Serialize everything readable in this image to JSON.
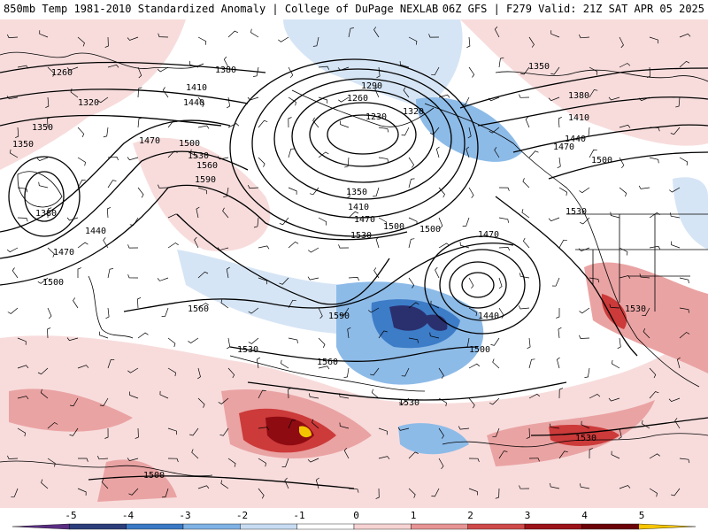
{
  "header": {
    "left_title": "850mb Temp 1981-2010 Standardized Anomaly | College of DuPage NEXLAB",
    "right_title": "06Z GFS | F279 Valid: 21Z SAT APR 05 2025"
  },
  "contour_labels": [
    "1260",
    "1320",
    "1350",
    "1380",
    "1410",
    "1440",
    "1470",
    "1500",
    "1530",
    "1560",
    "1590",
    "1350",
    "1290",
    "1260",
    "1230",
    "1320",
    "1350",
    "1410",
    "1470",
    "1500",
    "1530",
    "1380",
    "1440",
    "1470",
    "1500",
    "1530",
    "1560",
    "1590",
    "1560",
    "1530",
    "1470",
    "1440",
    "1500",
    "1530",
    "1350",
    "1380",
    "1410",
    "1440",
    "1470",
    "1500",
    "1530",
    "1530",
    "1500",
    "1500"
  ],
  "colorbar": {
    "ticks": [
      "-5",
      "-4",
      "-3",
      "-2",
      "-1",
      "0",
      "1",
      "2",
      "3",
      "4",
      "5"
    ],
    "colors": [
      "#5a2d82",
      "#2c3e7a",
      "#3a78c4",
      "#7fb2e5",
      "#c7dcf2",
      "#ffffff",
      "#f6d2d2",
      "#e79494",
      "#cf4a4a",
      "#9c1219",
      "#6b0308",
      "#f7c600"
    ]
  },
  "field_colors": {
    "positive_weak": "#f8dcdc",
    "positive_mod": "#eaa3a3",
    "positive_strong": "#cc3a3a",
    "positive_extreme": "#8e0b12",
    "positive_peak": "#f2c500",
    "negative_weak": "#d6e5f5",
    "negative_mod": "#8dbbe8",
    "negative_strong": "#3d7cc7",
    "negative_extreme": "#2a2f6e"
  }
}
